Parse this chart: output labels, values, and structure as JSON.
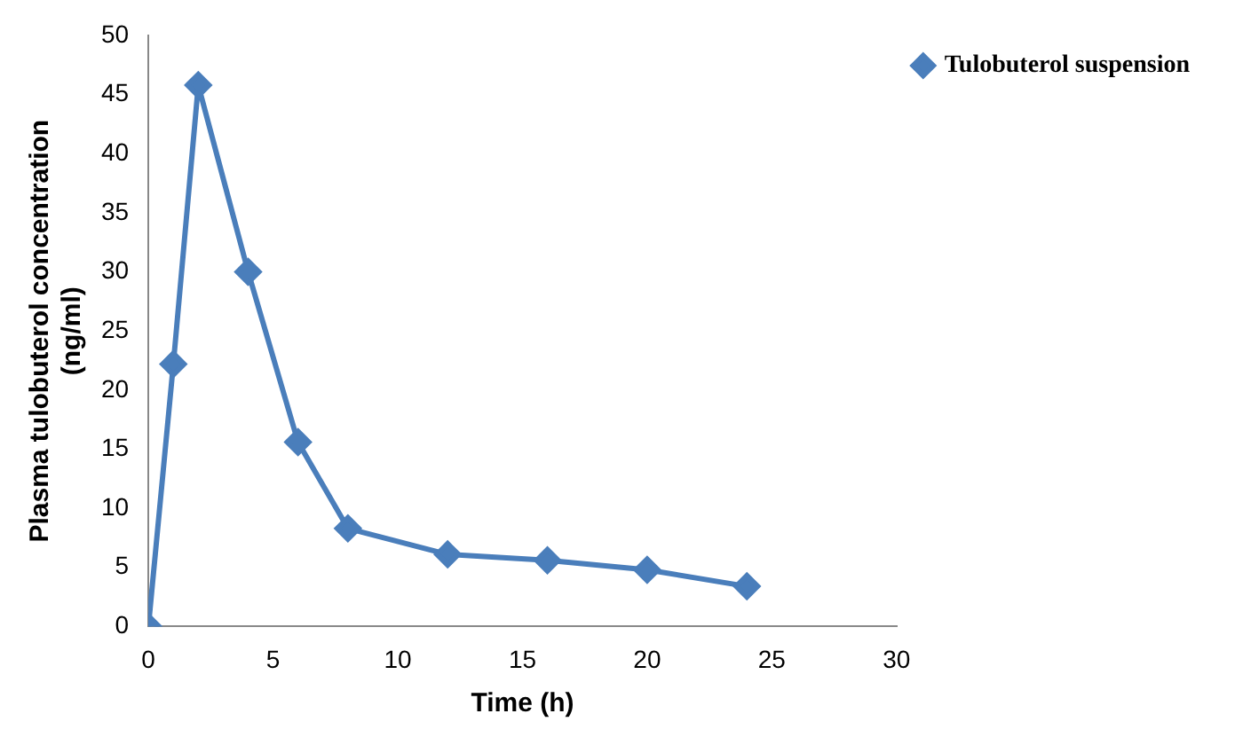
{
  "chart_data": {
    "type": "line",
    "xlabel": "Time (h)",
    "ylabel": "Plasma tulobuterol concentration\n(ng/ml)",
    "x": [
      0,
      1,
      2,
      4,
      6,
      8,
      12,
      16,
      20,
      24
    ],
    "series": [
      {
        "name": "Tulobuterol suspension",
        "color": "#4a7ebb",
        "values": [
          0,
          22.2,
          45.8,
          30,
          15.6,
          8.3,
          6.1,
          5.6,
          4.8,
          3.4
        ]
      }
    ],
    "xlim": [
      0,
      30
    ],
    "xticks": [
      0,
      5,
      10,
      15,
      20,
      25,
      30
    ],
    "ylim": [
      0,
      50
    ],
    "yticks": [
      0,
      5,
      10,
      15,
      20,
      25,
      30,
      35,
      40,
      45,
      50
    ],
    "grid": false,
    "legend": "top right",
    "marker": "diamond",
    "line_style": "solid"
  }
}
